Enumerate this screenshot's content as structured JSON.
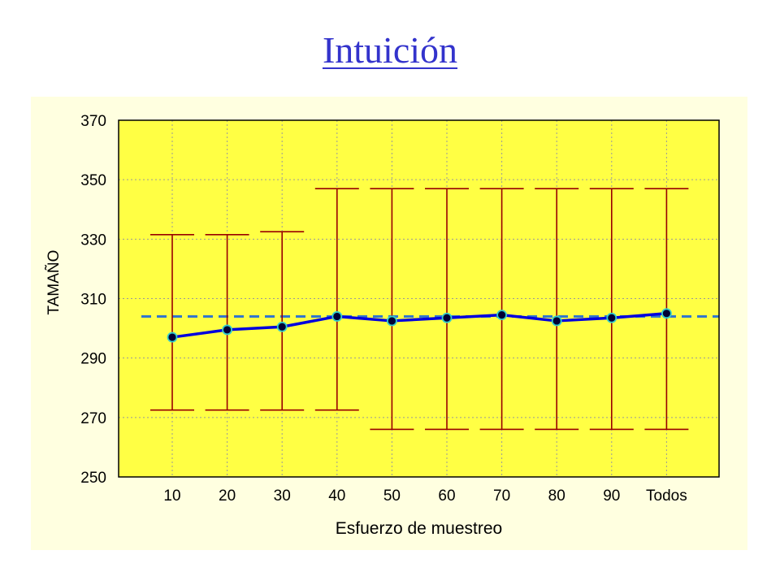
{
  "slide": {
    "title": "Intuición",
    "title_color": "#3333cc"
  },
  "chart_data": {
    "type": "line",
    "title": "",
    "xlabel": "Esfuerzo de muestreo",
    "ylabel": "TAMAÑO",
    "categories": [
      "10",
      "20",
      "30",
      "40",
      "50",
      "60",
      "70",
      "80",
      "90",
      "Todos"
    ],
    "series": [
      {
        "values": [
          297,
          299.5,
          300.5,
          304,
          302.5,
          303.5,
          304.5,
          302.5,
          303.5,
          305
        ],
        "lower": [
          272.5,
          272.5,
          272.5,
          272.5,
          266,
          266,
          266,
          266,
          266,
          266
        ],
        "upper": [
          331.5,
          331.5,
          332.5,
          347,
          347,
          347,
          347,
          347,
          347,
          347
        ]
      }
    ],
    "reference_line": 304,
    "ylim": [
      250,
      370
    ],
    "yticks": [
      250,
      270,
      290,
      310,
      330,
      350,
      370
    ],
    "grid": true,
    "colors": {
      "panel": "#ffffe0",
      "plot_area": "#ffff44",
      "line": "#0000dd",
      "marker_fill": "#000033",
      "marker_edge": "#33cccc",
      "error_bar": "#990000",
      "reference": "#3377cc",
      "grid": "#999999"
    }
  }
}
